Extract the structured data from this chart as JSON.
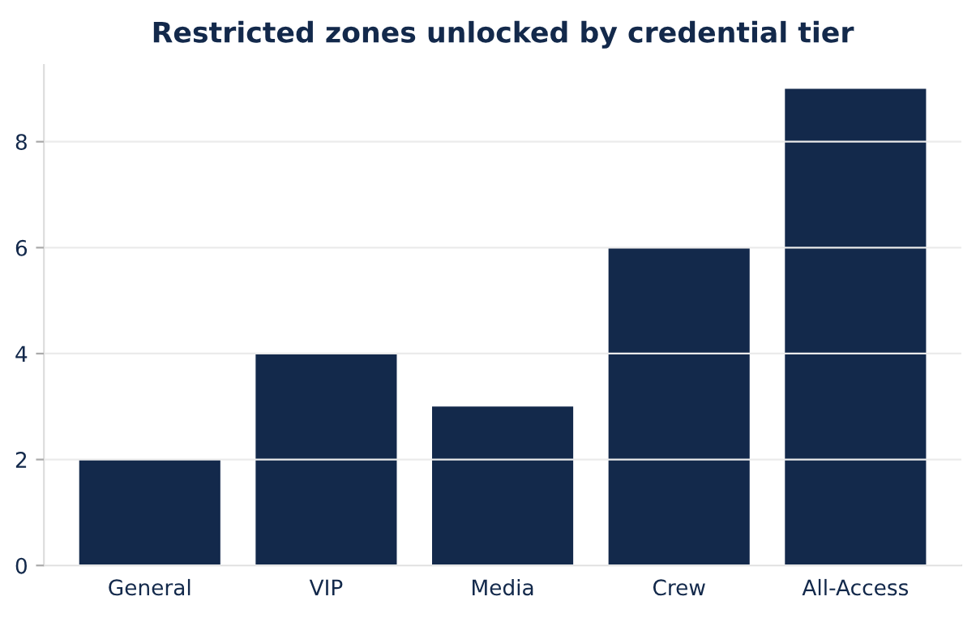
{
  "chart_data": {
    "type": "bar",
    "title": "Restricted zones unlocked by credential tier",
    "categories": [
      "General",
      "VIP",
      "Media",
      "Crew",
      "All-Access"
    ],
    "values": [
      2,
      4,
      3,
      6,
      9
    ],
    "color": "#13294b",
    "ylim": [
      0,
      9.45
    ],
    "yticks": [
      0,
      2,
      4,
      6,
      8
    ],
    "grid": "y"
  }
}
